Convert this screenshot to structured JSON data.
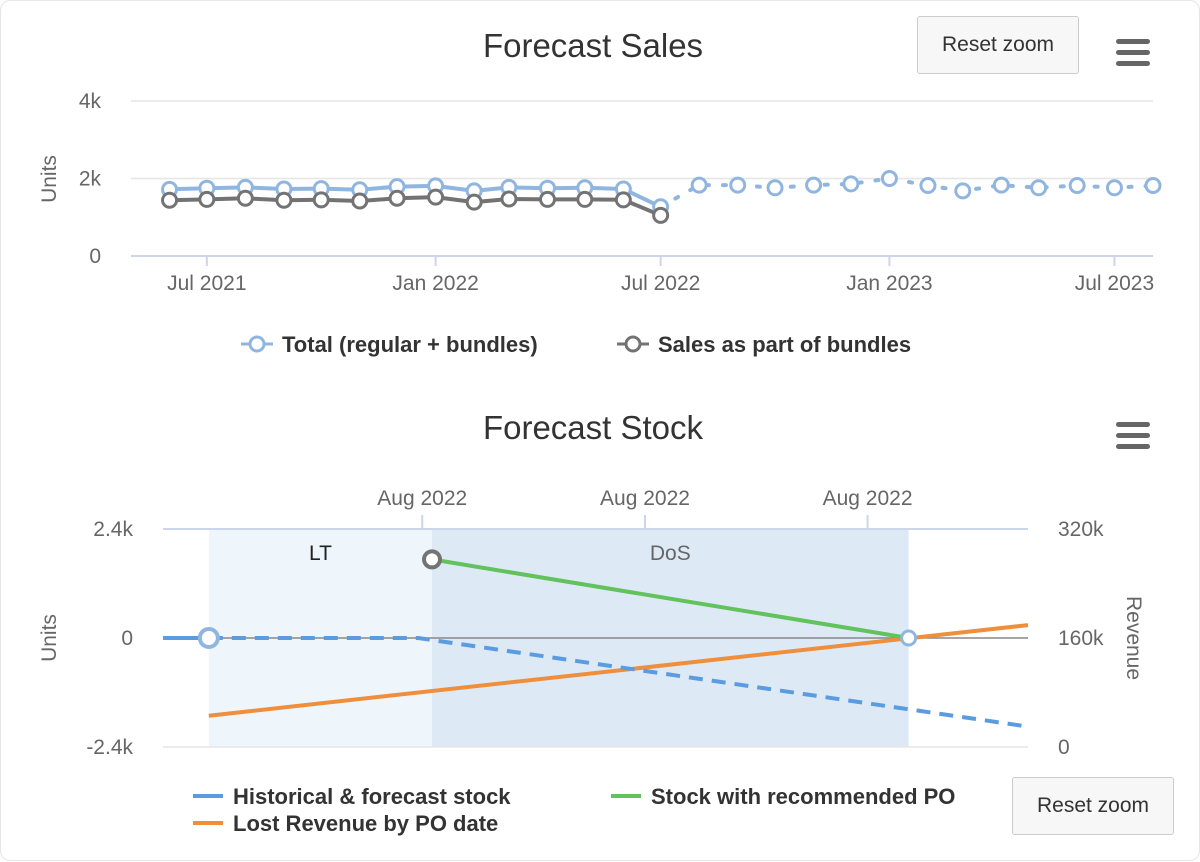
{
  "buttons": {
    "reset_zoom": "Reset zoom"
  },
  "icons": {
    "menu": "hamburger-menu-icon"
  },
  "chart_data": [
    {
      "type": "line",
      "title": "Forecast Sales",
      "ylabel": "Units",
      "ylim": [
        0,
        4000
      ],
      "y_ticks": [
        "0",
        "2k",
        "4k"
      ],
      "x_range": [
        "2021-05-01",
        "2023-08-01"
      ],
      "x_ticks": [
        {
          "date": "2021-07-01",
          "label": "Jul 2021"
        },
        {
          "date": "2022-01-01",
          "label": "Jan 2022"
        },
        {
          "date": "2022-07-01",
          "label": "Jul 2022"
        },
        {
          "date": "2023-01-01",
          "label": "Jan 2023"
        },
        {
          "date": "2023-07-01",
          "label": "Jul 2023"
        }
      ],
      "grid": true,
      "legend": "bottom",
      "series": [
        {
          "name": "Total (regular + bundles)",
          "color": "#90b6e0",
          "points": [
            [
              "2021-06-01",
              1720
            ],
            [
              "2021-07-01",
              1750
            ],
            [
              "2021-08-01",
              1770
            ],
            [
              "2021-09-01",
              1730
            ],
            [
              "2021-10-01",
              1740
            ],
            [
              "2021-11-01",
              1710
            ],
            [
              "2021-12-01",
              1790
            ],
            [
              "2022-01-01",
              1810
            ],
            [
              "2022-02-01",
              1680
            ],
            [
              "2022-03-01",
              1770
            ],
            [
              "2022-04-01",
              1750
            ],
            [
              "2022-05-01",
              1760
            ],
            [
              "2022-06-01",
              1730
            ],
            [
              "2022-07-01",
              1270
            ]
          ],
          "forecast_points": [
            [
              "2022-07-01",
              1270
            ],
            [
              "2022-08-01",
              1830
            ],
            [
              "2022-09-01",
              1830
            ],
            [
              "2022-10-01",
              1760
            ],
            [
              "2022-11-01",
              1830
            ],
            [
              "2022-12-01",
              1860
            ],
            [
              "2023-01-01",
              2000
            ],
            [
              "2023-02-01",
              1820
            ],
            [
              "2023-03-01",
              1680
            ],
            [
              "2023-04-01",
              1830
            ],
            [
              "2023-05-01",
              1760
            ],
            [
              "2023-06-01",
              1820
            ],
            [
              "2023-07-01",
              1760
            ],
            [
              "2023-08-01",
              1820
            ]
          ]
        },
        {
          "name": "Sales as part of bundles",
          "color": "#737373",
          "points": [
            [
              "2021-06-01",
              1440
            ],
            [
              "2021-07-01",
              1460
            ],
            [
              "2021-08-01",
              1490
            ],
            [
              "2021-09-01",
              1440
            ],
            [
              "2021-10-01",
              1450
            ],
            [
              "2021-11-01",
              1420
            ],
            [
              "2021-12-01",
              1490
            ],
            [
              "2022-01-01",
              1520
            ],
            [
              "2022-02-01",
              1390
            ],
            [
              "2022-03-01",
              1470
            ],
            [
              "2022-04-01",
              1460
            ],
            [
              "2022-05-01",
              1460
            ],
            [
              "2022-06-01",
              1450
            ],
            [
              "2022-07-01",
              1050
            ]
          ]
        }
      ]
    },
    {
      "type": "line",
      "title": "Forecast Stock",
      "ylabel": "Units",
      "ylim": [
        -2400,
        2400
      ],
      "y_ticks": [
        "-2.4k",
        "0",
        "2.4k"
      ],
      "y2label": "Revenue",
      "y2lim": [
        0,
        320000
      ],
      "y2_ticks": [
        "0",
        "160k",
        "320k"
      ],
      "x_range": [
        0,
        100
      ],
      "x_ticks": [
        {
          "x": 29.97,
          "label": "Aug 2022"
        },
        {
          "x": 55.72,
          "label": "Aug 2022"
        },
        {
          "x": 81.45,
          "label": "Aug 2022"
        }
      ],
      "plot_bands": [
        {
          "label": "LT",
          "from": 5.3,
          "to": 31.1,
          "color": "#eef5fb"
        },
        {
          "label": "DoS",
          "from": 31.1,
          "to": 86.2,
          "color": "#ddeaf6"
        }
      ],
      "legend": "bottom",
      "series": [
        {
          "name": "Historical & forecast stock",
          "color": "#5b9bdf",
          "points": [
            [
              0,
              0
            ],
            [
              5.3,
              0
            ]
          ],
          "forecast_points": [
            [
              5.3,
              0
            ],
            [
              29.5,
              0
            ],
            [
              100,
              -1950
            ]
          ]
        },
        {
          "name": "Stock with recommended PO",
          "color": "#62c25c",
          "points": [
            [
              31.1,
              1730
            ],
            [
              86.2,
              0
            ]
          ]
        },
        {
          "name": "Lost Revenue by PO date",
          "color": "#ef8f3c",
          "axis": "y2",
          "points": [
            [
              5.3,
              46000
            ],
            [
              100,
              179000
            ]
          ]
        }
      ]
    }
  ]
}
